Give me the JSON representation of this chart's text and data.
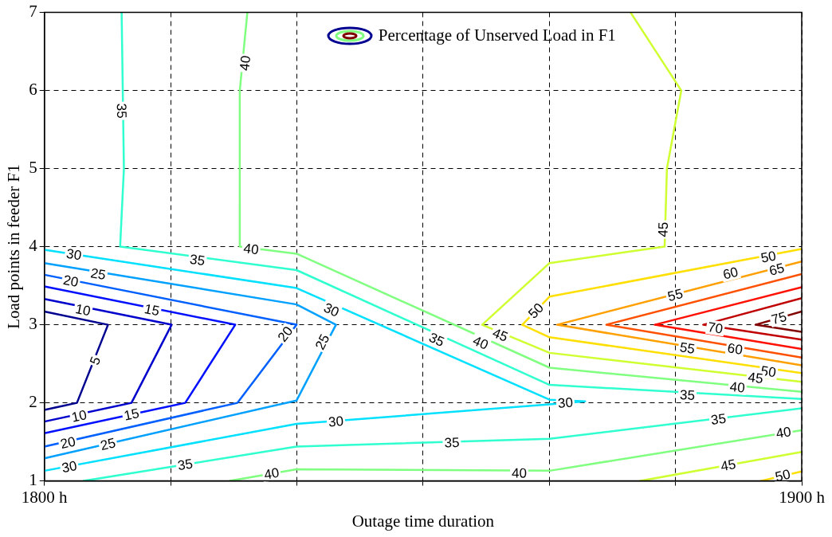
{
  "chart_data": {
    "type": "line",
    "xlabel": "Outage time duration",
    "ylabel": "Load points in feeder F1",
    "grid": true,
    "marker": "none",
    "line_style": "solid",
    "xlim": [
      1800,
      1900
    ],
    "xticks": [
      {
        "value": 1800,
        "label": "1800 h"
      },
      {
        "value": 1816.7,
        "label": null
      },
      {
        "value": 1833.3,
        "label": null
      },
      {
        "value": 1850,
        "label": null
      },
      {
        "value": 1866.7,
        "label": null
      },
      {
        "value": 1883.3,
        "label": null
      },
      {
        "value": 1900,
        "label": "1900 h"
      }
    ],
    "ylim": [
      1,
      7
    ],
    "yticks": [
      1,
      2,
      3,
      4,
      5,
      6,
      7
    ],
    "annotations": [
      "Percentage of Unserved Load in F1",
      {
        "text": "30",
        "x": 1803.9,
        "y": 3.9
      },
      {
        "text": "25",
        "x": 1807.1,
        "y": 3.65
      },
      {
        "text": "20",
        "x": 1803.5,
        "y": 3.56
      },
      {
        "text": "10",
        "x": 1805.1,
        "y": 3.19
      },
      {
        "text": "15",
        "x": 1814.2,
        "y": 3.19
      },
      {
        "text": "5",
        "x": 1806.7,
        "y": 2.54
      },
      {
        "text": "10",
        "x": 1804.6,
        "y": 1.83
      },
      {
        "text": "15",
        "x": 1811.5,
        "y": 1.85
      },
      {
        "text": "20",
        "x": 1803.1,
        "y": 1.49
      },
      {
        "text": "25",
        "x": 1808.4,
        "y": 1.47
      },
      {
        "text": "30",
        "x": 1803.3,
        "y": 1.18
      },
      {
        "text": "35",
        "x": 1818.6,
        "y": 1.21
      },
      {
        "text": "40",
        "x": 1830,
        "y": 1.094
      },
      {
        "text": "35",
        "x": 1820.2,
        "y": 3.83
      },
      {
        "text": "40",
        "x": 1827.3,
        "y": 3.97
      },
      {
        "text": "20",
        "x": 1831.8,
        "y": 2.88
      },
      {
        "text": "25",
        "x": 1836.7,
        "y": 2.78
      },
      {
        "text": "30",
        "x": 1837.9,
        "y": 3.19
      },
      {
        "text": "35",
        "x": 1851.8,
        "y": 2.81
      },
      {
        "text": "40",
        "x": 1857.6,
        "y": 2.77
      },
      {
        "text": "45",
        "x": 1860.2,
        "y": 2.87
      },
      {
        "text": "50",
        "x": 1864.9,
        "y": 3.18
      },
      {
        "text": "30",
        "x": 1838.5,
        "y": 1.76
      },
      {
        "text": "35",
        "x": 1853.8,
        "y": 1.49
      },
      {
        "text": "40",
        "x": 1862.7,
        "y": 1.1
      },
      {
        "text": "30",
        "x": 1868.8,
        "y": 2.0
      },
      {
        "text": "35",
        "x": 1889,
        "y": 1.79
      },
      {
        "text": "40",
        "x": 1897.6,
        "y": 1.62
      },
      {
        "text": "45",
        "x": 1890.3,
        "y": 1.2
      },
      {
        "text": "50",
        "x": 1897.5,
        "y": 1.07
      },
      {
        "text": "35",
        "x": 1810.2,
        "y": 5.74
      },
      {
        "text": "40",
        "x": 1826.5,
        "y": 6.35
      },
      {
        "text": "45",
        "x": 1881.7,
        "y": 4.22
      },
      {
        "text": "50",
        "x": 1895.6,
        "y": 3.87
      },
      {
        "text": "55",
        "x": 1883.3,
        "y": 3.38
      },
      {
        "text": "60",
        "x": 1890.6,
        "y": 3.66
      },
      {
        "text": "65",
        "x": 1896.7,
        "y": 3.71
      },
      {
        "text": "70",
        "x": 1888.6,
        "y": 2.96
      },
      {
        "text": "75",
        "x": 1897,
        "y": 3.085
      },
      {
        "text": "55",
        "x": 1884.9,
        "y": 2.7
      },
      {
        "text": "60",
        "x": 1891.2,
        "y": 2.69
      },
      {
        "text": "50",
        "x": 1895.6,
        "y": 2.4
      },
      {
        "text": "45",
        "x": 1893.9,
        "y": 2.32
      },
      {
        "text": "40",
        "x": 1891.5,
        "y": 2.2
      },
      {
        "text": "35",
        "x": 1884.9,
        "y": 2.1
      }
    ],
    "series": [
      {
        "color": "#000090",
        "x": [
          1800,
          1808.4,
          1804.3,
          1800
        ],
        "values": [
          3.17,
          3,
          2,
          1.91
        ]
      },
      {
        "color": "#0000cc",
        "x": [
          1800,
          1816.8,
          1811.5,
          1800
        ],
        "values": [
          3.33,
          3,
          2,
          1.76
        ]
      },
      {
        "color": "#0010ff",
        "x": [
          1800,
          1825.2,
          1818.6,
          1800
        ],
        "values": [
          3.49,
          3,
          2,
          1.61
        ]
      },
      {
        "color": "#0060ff",
        "x": [
          1800,
          1833.3,
          1825.5,
          1800
        ],
        "values": [
          3.64,
          3,
          2,
          1.44
        ]
      },
      {
        "color": "#00a0ff",
        "x": [
          1800,
          1833.3,
          1838.5,
          1833.3,
          1800
        ],
        "values": [
          3.79,
          3.26,
          3,
          2.03,
          1.29
        ]
      },
      {
        "color": "#00e0ff",
        "x": [
          1800,
          1833.3,
          1866.7,
          1871.4,
          1866.7,
          1833.3,
          1800
        ],
        "values": [
          3.96,
          3.47,
          2.04,
          2.02,
          1.98,
          1.73,
          1.13
        ]
      },
      {
        "color": "#30ffcf",
        "x": [
          1810.2,
          1810.5,
          1810,
          1833.3,
          1866.7,
          1900
        ],
        "values": [
          7,
          5,
          4,
          3.7,
          2.23,
          2.05
        ]
      },
      {
        "color": "#30ffcf",
        "x": [
          1805.2,
          1833.3,
          1866.7,
          1900
        ],
        "values": [
          1,
          1.44,
          1.54,
          1.93
        ]
      },
      {
        "color": "#80ff80",
        "x": [
          1826.8,
          1825.8,
          1825.8,
          1833.3,
          1866.7,
          1900
        ],
        "values": [
          7,
          6,
          4,
          3.91,
          2.45,
          2.14
        ]
      },
      {
        "color": "#80ff80",
        "x": [
          1824.5,
          1833.3,
          1866.7,
          1900
        ],
        "values": [
          1,
          1.15,
          1.13,
          1.65
        ]
      },
      {
        "color": "#cfff30",
        "x": [
          1877.4,
          1884.1,
          1882.2,
          1881.9,
          1866.7,
          1857.8,
          1866.7,
          1900
        ],
        "values": [
          7,
          6,
          5,
          4,
          3.79,
          3,
          2.64,
          2.27
        ]
      },
      {
        "color": "#cfff30",
        "x": [
          1878.7,
          1900
        ],
        "values": [
          1,
          1.37
        ]
      },
      {
        "color": "#ffdf00",
        "x": [
          1900,
          1866.7,
          1863.1,
          1866.7,
          1900
        ],
        "values": [
          3.97,
          3.36,
          3,
          2.84,
          2.38
        ]
      },
      {
        "color": "#ffdf00",
        "x": [
          1894.6,
          1900
        ],
        "values": [
          1,
          1.12
        ]
      },
      {
        "color": "#ffa000",
        "x": [
          1900,
          1867.7,
          1900
        ],
        "values": [
          3.81,
          3,
          2.48
        ]
      },
      {
        "color": "#ff5000",
        "x": [
          1900,
          1874.2,
          1900
        ],
        "values": [
          3.65,
          3,
          2.58
        ]
      },
      {
        "color": "#ff1000",
        "x": [
          1900,
          1880.6,
          1900
        ],
        "values": [
          3.48,
          3,
          2.69
        ]
      },
      {
        "color": "#c00000",
        "x": [
          1900,
          1887,
          1900
        ],
        "values": [
          3.34,
          3,
          2.81
        ]
      },
      {
        "color": "#800000",
        "x": [
          1900,
          1893.9,
          1900
        ],
        "values": [
          3.17,
          3,
          2.91
        ]
      }
    ]
  }
}
